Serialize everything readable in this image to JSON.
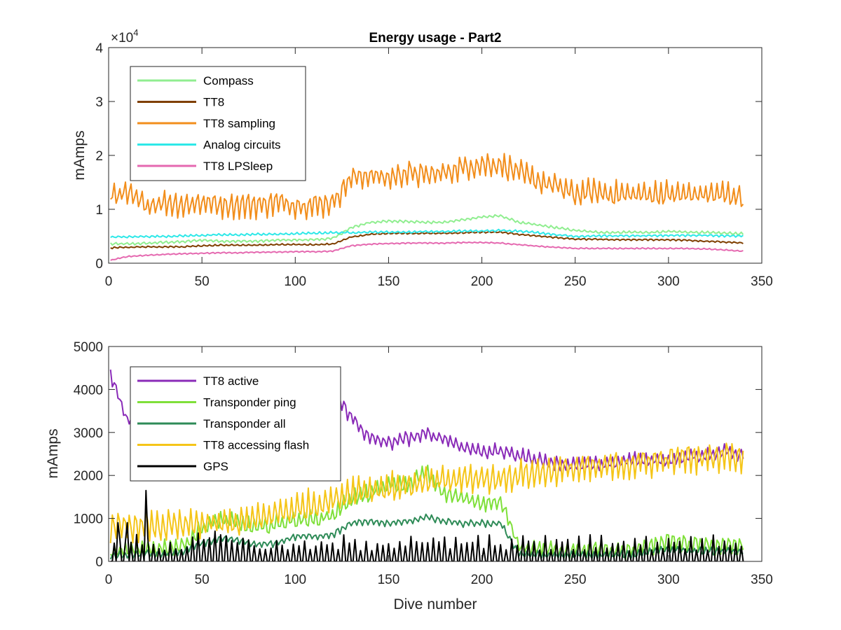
{
  "chart_data": [
    {
      "type": "line",
      "title": "Energy usage - Part2",
      "xlabel": "",
      "ylabel": "mAmps",
      "xlim": [
        0,
        350
      ],
      "ylim": [
        0,
        40000
      ],
      "y_exponent_label": "×10",
      "y_exponent_power": "4",
      "xticks": [
        "0",
        "50",
        "100",
        "150",
        "200",
        "250",
        "300",
        "350"
      ],
      "yticks": [
        "0",
        "1",
        "2",
        "3",
        "4"
      ],
      "legend_position": "top-left",
      "x": [
        1,
        10,
        20,
        30,
        40,
        50,
        60,
        70,
        80,
        90,
        100,
        110,
        120,
        130,
        140,
        150,
        160,
        170,
        180,
        190,
        200,
        210,
        220,
        230,
        240,
        250,
        260,
        270,
        280,
        290,
        300,
        310,
        320,
        330,
        340
      ],
      "series": [
        {
          "name": "Compass",
          "color": "#90ee90",
          "base": [
            3500,
            3500,
            3600,
            3800,
            3900,
            4200,
            4000,
            4000,
            4000,
            4200,
            4200,
            4300,
            4500,
            6500,
            7500,
            7700,
            7700,
            7500,
            7500,
            8000,
            8500,
            8700,
            7500,
            7000,
            6500,
            6000,
            5700,
            5600,
            5700,
            5600,
            5800,
            5700,
            5600,
            5500,
            5400
          ],
          "amp": 400
        },
        {
          "name": "TT8",
          "color": "#7f3f00",
          "base": [
            2800,
            2900,
            3000,
            3000,
            3000,
            3200,
            3300,
            3300,
            3300,
            3400,
            3400,
            3400,
            3500,
            4800,
            5300,
            5500,
            5500,
            5500,
            5500,
            5600,
            5700,
            5700,
            5300,
            5000,
            4700,
            4400,
            4400,
            4300,
            4300,
            4300,
            4300,
            4200,
            4000,
            3900,
            3700
          ],
          "amp": 250
        },
        {
          "name": "TT8 sampling",
          "color": "#f28e1c",
          "base": [
            12000,
            12000,
            10000,
            10500,
            10000,
            10500,
            10000,
            10000,
            10000,
            10500,
            10000,
            10000,
            10500,
            15000,
            15500,
            15000,
            16000,
            15500,
            16000,
            17000,
            17500,
            17500,
            16000,
            14500,
            13500,
            12000,
            12500,
            12000,
            12000,
            12000,
            12000,
            12000,
            12000,
            12000,
            11500
          ],
          "amp": 4000
        },
        {
          "name": "Analog circuits",
          "color": "#2ee8e8",
          "base": [
            4800,
            4800,
            4900,
            4900,
            5000,
            5100,
            5200,
            5200,
            5300,
            5300,
            5400,
            5500,
            5600,
            5600,
            5700,
            5700,
            5700,
            5800,
            5800,
            5900,
            5900,
            6000,
            5900,
            5600,
            5200,
            4900,
            5000,
            5000,
            5000,
            5000,
            5100,
            5100,
            5100,
            5000,
            5000
          ],
          "amp": 350
        },
        {
          "name": "TT8 LPSleep",
          "color": "#e569b0",
          "base": [
            500,
            1200,
            1400,
            1600,
            1700,
            1800,
            1900,
            1900,
            2000,
            2000,
            2100,
            2100,
            2200,
            3200,
            3500,
            3600,
            3700,
            3700,
            3700,
            3800,
            3800,
            3700,
            3400,
            3100,
            2900,
            2700,
            2700,
            2700,
            2700,
            2700,
            2700,
            2700,
            2600,
            2400,
            2200
          ],
          "amp": 200
        }
      ]
    },
    {
      "type": "line",
      "title": "",
      "xlabel": "Dive number",
      "ylabel": "mAmps",
      "xlim": [
        0,
        350
      ],
      "ylim": [
        0,
        5000
      ],
      "xticks": [
        "0",
        "50",
        "100",
        "150",
        "200",
        "250",
        "300",
        "350"
      ],
      "yticks": [
        "0",
        "1000",
        "2000",
        "3000",
        "4000",
        "5000"
      ],
      "legend_position": "top-left",
      "x": [
        1,
        10,
        20,
        30,
        40,
        50,
        60,
        70,
        80,
        90,
        100,
        110,
        120,
        130,
        140,
        150,
        160,
        170,
        180,
        190,
        200,
        210,
        220,
        230,
        240,
        250,
        260,
        270,
        280,
        290,
        300,
        310,
        320,
        330,
        340
      ],
      "series": [
        {
          "name": "TT8 active",
          "color": "#8a2bb8",
          "base": [
            4300,
            3200,
            3400,
            3600,
            3800,
            3700,
            3800,
            3800,
            3900,
            3900,
            3900,
            3900,
            3900,
            3300,
            2800,
            2700,
            2800,
            2900,
            2800,
            2600,
            2500,
            2500,
            2400,
            2300,
            2200,
            2200,
            2200,
            2200,
            2300,
            2300,
            2300,
            2400,
            2400,
            2500,
            2400
          ],
          "amp": 300
        },
        {
          "name": "Transponder ping",
          "color": "#7fe03a",
          "base": [
            150,
            180,
            200,
            250,
            300,
            700,
            900,
            800,
            700,
            800,
            900,
            900,
            1000,
            1400,
            1500,
            1700,
            1700,
            2000,
            1500,
            1400,
            1300,
            1300,
            300,
            250,
            200,
            200,
            200,
            200,
            200,
            300,
            400,
            350,
            300,
            300,
            300
          ],
          "amp": 350
        },
        {
          "name": "Transponder all",
          "color": "#2e8b57",
          "base": [
            100,
            120,
            150,
            150,
            200,
            400,
            500,
            450,
            350,
            400,
            550,
            550,
            600,
            850,
            900,
            850,
            900,
            1000,
            900,
            850,
            850,
            850,
            150,
            120,
            120,
            120,
            120,
            120,
            120,
            200,
            250,
            220,
            200,
            200,
            200
          ],
          "amp": 150
        },
        {
          "name": "TT8 accessing flash",
          "color": "#f5c518",
          "base": [
            600,
            700,
            700,
            700,
            700,
            750,
            750,
            800,
            850,
            1000,
            1100,
            1200,
            1300,
            1500,
            1550,
            1600,
            1650,
            1700,
            1750,
            1800,
            1800,
            1800,
            1900,
            1950,
            2000,
            2050,
            2050,
            2100,
            2150,
            2200,
            2250,
            2300,
            2300,
            2350,
            2300
          ],
          "amp": 600
        },
        {
          "name": "GPS",
          "color": "#000000",
          "base": [
            120,
            300,
            200,
            100,
            100,
            300,
            400,
            200,
            100,
            80,
            80,
            80,
            80,
            80,
            80,
            80,
            80,
            80,
            80,
            80,
            80,
            80,
            80,
            80,
            80,
            80,
            80,
            80,
            80,
            80,
            80,
            80,
            80,
            80,
            80
          ],
          "amp": 250
        }
      ]
    }
  ]
}
